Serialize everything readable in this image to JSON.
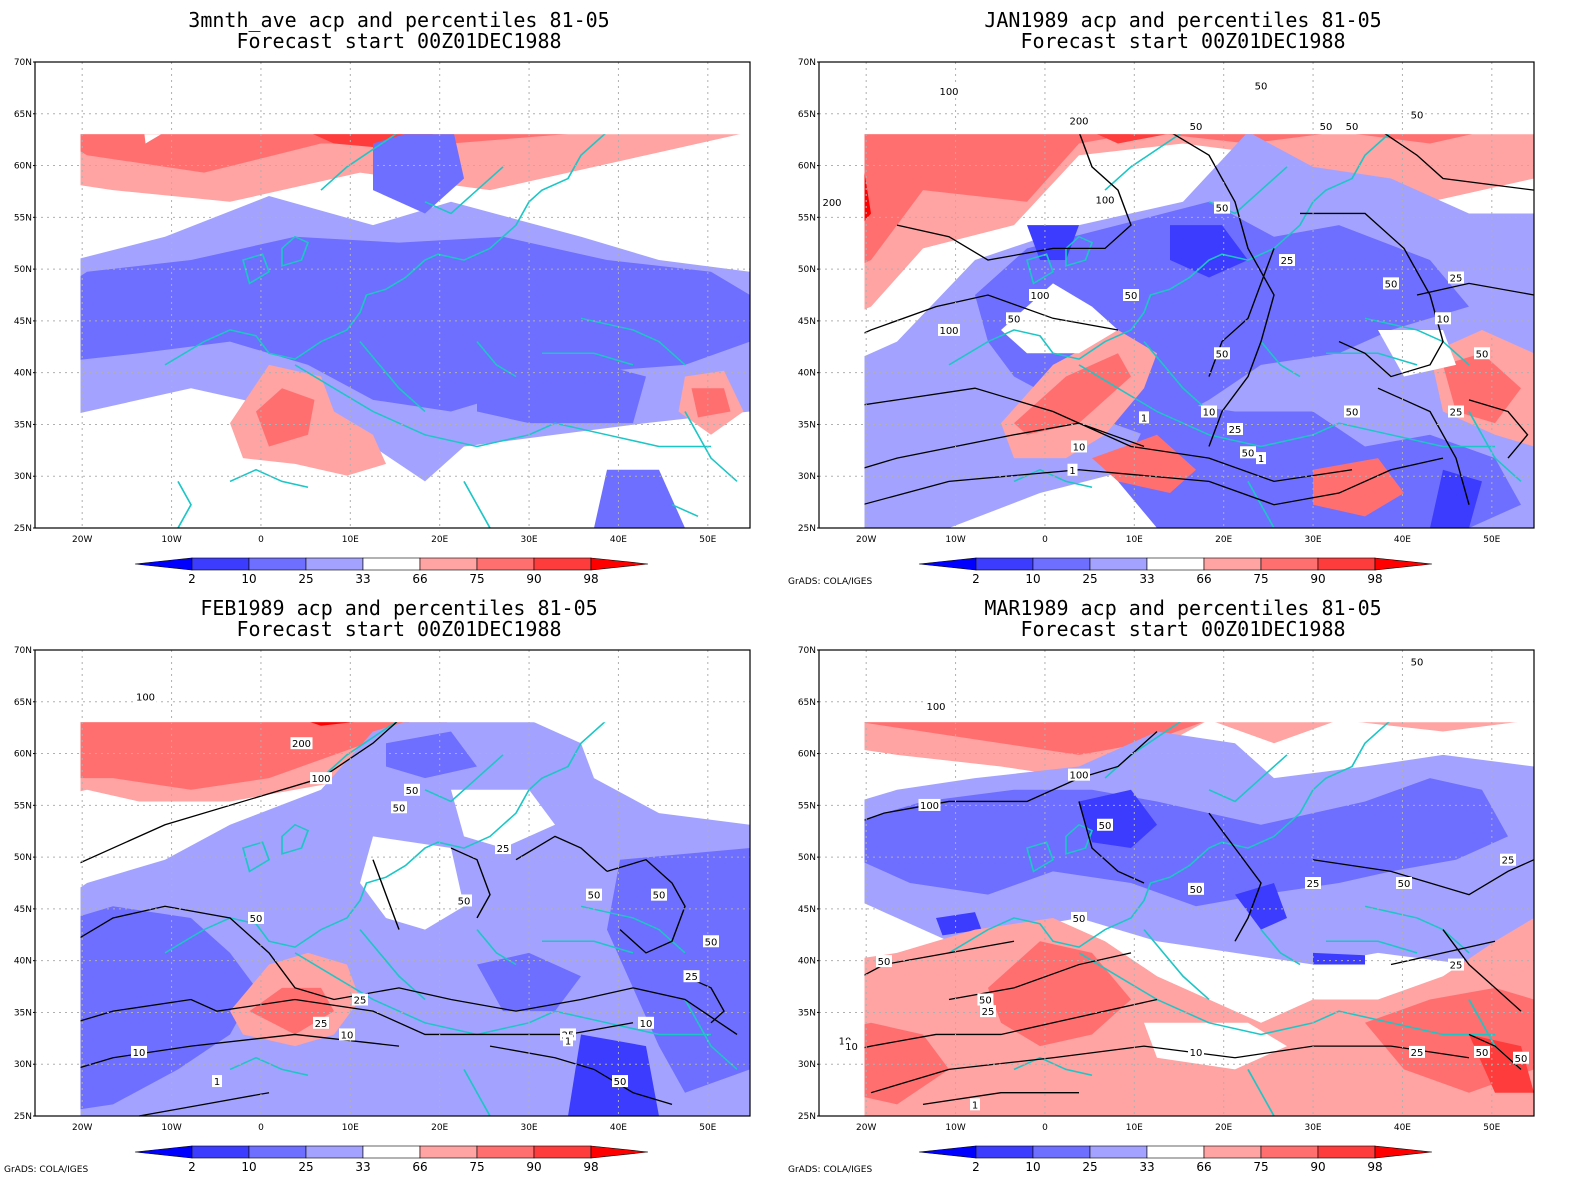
{
  "panels": [
    {
      "id": "p0",
      "title_line1": "3mnth_ave acp and percentiles 81-05",
      "title_line2": "Forecast start 00Z01DEC1988",
      "credit": "",
      "contours": []
    },
    {
      "id": "p1",
      "title_line1": "JAN1989 acp and percentiles 81-05",
      "title_line2": "Forecast start 00Z01DEC1988",
      "credit": "GrADS: COLA/IGES",
      "contours": [
        "100",
        "200",
        "50",
        "50",
        "50",
        "50",
        "50",
        "200",
        "100",
        "50",
        "25",
        "50",
        "25",
        "100",
        "50",
        "100",
        "50",
        "50",
        "10",
        "25",
        "50",
        "10",
        "25",
        "1",
        "10",
        "1",
        "50",
        "1",
        "50"
      ]
    },
    {
      "id": "p2",
      "title_line1": "FEB1989 acp and percentiles 81-05",
      "title_line2": "Forecast start 00Z01DEC1988",
      "credit": "GrADS: COLA/IGES",
      "contours": [
        "100",
        "200",
        "100",
        "50",
        "50",
        "50",
        "50",
        "25",
        "50",
        "50",
        "25",
        "50",
        "25",
        "10",
        "25",
        "10",
        "25",
        "10",
        "1",
        "1",
        "50"
      ]
    },
    {
      "id": "p3",
      "title_line1": "MAR1989 acp and percentiles 81-05",
      "title_line2": "Forecast start 00Z01DEC1988",
      "credit": "GrADS: COLA/IGES",
      "contours": [
        "50",
        "100",
        "100",
        "100",
        "50",
        "25",
        "50",
        "50",
        "50",
        "25",
        "50",
        "50",
        "25",
        "25",
        "10",
        "10",
        "25",
        "10",
        "1",
        "50",
        "50"
      ]
    }
  ],
  "axes": {
    "lat_labels": [
      "70N",
      "65N",
      "60N",
      "55N",
      "50N",
      "45N",
      "40N",
      "35N",
      "30N",
      "25N"
    ],
    "lon_labels": [
      "20W",
      "10W",
      "0",
      "10E",
      "20E",
      "30E",
      "40E",
      "50E"
    ]
  },
  "colorbar": {
    "labels": [
      "2",
      "10",
      "25",
      "33",
      "66",
      "75",
      "90",
      "98"
    ],
    "colors": [
      "#0000ff",
      "#3c3cff",
      "#6f6fff",
      "#a3a3ff",
      "#ffffff",
      "#ffa3a3",
      "#ff6f6f",
      "#ff3c3c",
      "#ff0000"
    ]
  },
  "colors": {
    "coast": "#1cc6c6",
    "contour": "#000000",
    "grid": "#b0b0b0"
  }
}
